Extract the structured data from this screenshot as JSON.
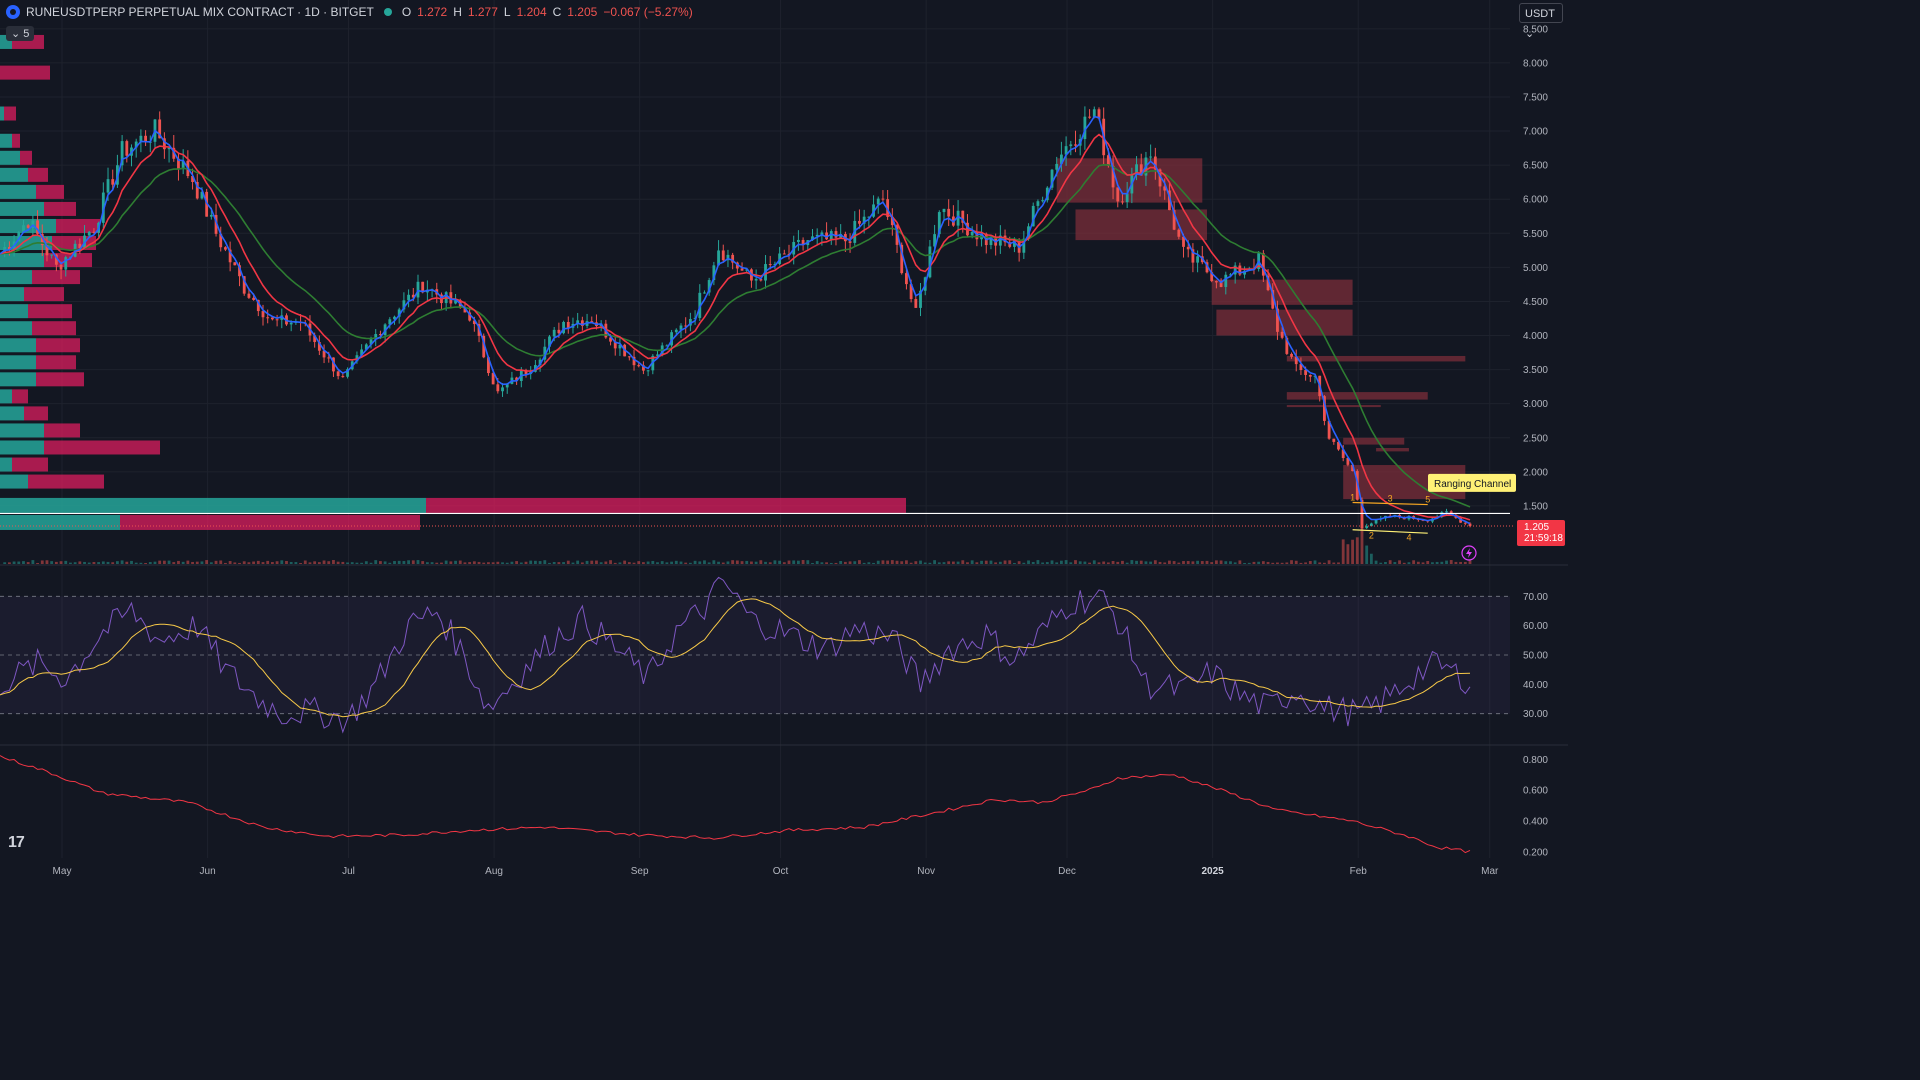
{
  "header": {
    "symbol": "RUNEUSDTPERP PERPETUAL MIX CONTRACT · 1D · BITGET",
    "open_label": "O",
    "open": "1.272",
    "high_label": "H",
    "high": "1.277",
    "low_label": "L",
    "low": "1.204",
    "close_label": "C",
    "close": "1.205",
    "change": "−0.067 (−5.27%)",
    "indicator_count": "5"
  },
  "currency": "USDT",
  "last_price_tag": {
    "price": "1.205",
    "countdown": "21:59:18"
  },
  "annotation": "Ranging Channel",
  "colors": {
    "background": "#131722",
    "up": "#26a69a",
    "down": "#ef5350",
    "ema_fast": "#2962ff",
    "ema_mid": "#f23645",
    "ema_slow": "#2e7d32",
    "rsi": "#7e57c2",
    "rsi_ma": "#f7c948",
    "bottom": "#f23645",
    "vp_up": "#26a69a",
    "vp_down": "#e91e63",
    "ob": "#7b2d3a"
  },
  "chart_data": [
    {
      "type": "candlestick",
      "price_axis_ticks": [
        "8.500",
        "8.000",
        "7.500",
        "7.000",
        "6.500",
        "6.000",
        "5.500",
        "5.000",
        "4.500",
        "4.000",
        "3.500",
        "3.000",
        "2.500",
        "2.000",
        "1.500"
      ],
      "ylim": [
        1.0,
        8.6
      ],
      "x_labels": [
        "May",
        "Jun",
        "Jul",
        "Aug",
        "Sep",
        "Oct",
        "Nov",
        "Dec",
        "2025",
        "Feb",
        "Mar"
      ],
      "x_label_days": [
        0,
        31,
        61,
        92,
        123,
        153,
        184,
        214,
        245,
        276,
        304
      ],
      "total_days": 313,
      "anchors": [
        [
          0,
          5.2
        ],
        [
          6,
          5.7
        ],
        [
          12,
          5.0
        ],
        [
          20,
          5.6
        ],
        [
          26,
          6.7
        ],
        [
          33,
          7.0
        ],
        [
          41,
          6.3
        ],
        [
          46,
          5.5
        ],
        [
          52,
          4.7
        ],
        [
          58,
          4.2
        ],
        [
          64,
          4.2
        ],
        [
          73,
          3.35
        ],
        [
          82,
          4.2
        ],
        [
          90,
          4.75
        ],
        [
          100,
          4.3
        ],
        [
          106,
          3.15
        ],
        [
          113,
          3.55
        ],
        [
          120,
          4.2
        ],
        [
          126,
          4.25
        ],
        [
          137,
          3.5
        ],
        [
          148,
          4.35
        ],
        [
          153,
          5.3
        ],
        [
          160,
          4.8
        ],
        [
          172,
          5.4
        ],
        [
          180,
          5.4
        ],
        [
          188,
          6.0
        ],
        [
          195,
          4.3
        ],
        [
          200,
          5.9
        ],
        [
          210,
          5.4
        ],
        [
          217,
          5.3
        ],
        [
          225,
          6.6
        ],
        [
          233,
          7.3
        ],
        [
          238,
          6.0
        ],
        [
          245,
          6.7
        ],
        [
          252,
          5.2
        ],
        [
          260,
          4.8
        ],
        [
          268,
          5.1
        ],
        [
          272,
          4.1
        ],
        [
          276,
          3.5
        ],
        [
          280,
          3.4
        ],
        [
          283,
          2.5
        ],
        [
          288,
          2.0
        ],
        [
          290,
          1.2
        ],
        [
          296,
          1.35
        ],
        [
          304,
          1.3
        ],
        [
          308,
          1.4
        ],
        [
          313,
          1.205
        ]
      ],
      "ema_fast_seed": 3,
      "ema_mid_seed": 9,
      "ema_slow_seed": 21,
      "order_blocks": [
        [
          225,
          256,
          6.6,
          5.95
        ],
        [
          229,
          257,
          5.85,
          5.4
        ],
        [
          258,
          288,
          4.82,
          4.45
        ],
        [
          259,
          288,
          4.38,
          4.0
        ],
        [
          274,
          312,
          3.7,
          3.62
        ],
        [
          274,
          304,
          3.17,
          3.06
        ],
        [
          274,
          294,
          2.98,
          2.95
        ],
        [
          286,
          299,
          2.5,
          2.4
        ],
        [
          293,
          300,
          2.35,
          2.3
        ],
        [
          286,
          312,
          2.1,
          1.6
        ]
      ],
      "volume_profile": [
        {
          "price": 8.3,
          "up": 6,
          "down": 16
        },
        {
          "price": 7.85,
          "up": 0,
          "down": 25
        },
        {
          "price": 7.25,
          "up": 2,
          "down": 6
        },
        {
          "price": 6.85,
          "up": 6,
          "down": 4
        },
        {
          "price": 6.6,
          "up": 10,
          "down": 6
        },
        {
          "price": 6.35,
          "up": 14,
          "down": 10
        },
        {
          "price": 6.1,
          "up": 18,
          "down": 14
        },
        {
          "price": 5.85,
          "up": 22,
          "down": 16
        },
        {
          "price": 5.6,
          "up": 28,
          "down": 22
        },
        {
          "price": 5.35,
          "up": 26,
          "down": 22
        },
        {
          "price": 5.1,
          "up": 22,
          "down": 24
        },
        {
          "price": 4.85,
          "up": 16,
          "down": 24
        },
        {
          "price": 4.6,
          "up": 12,
          "down": 20
        },
        {
          "price": 4.35,
          "up": 14,
          "down": 22
        },
        {
          "price": 4.1,
          "up": 16,
          "down": 22
        },
        {
          "price": 3.85,
          "up": 18,
          "down": 22
        },
        {
          "price": 3.6,
          "up": 18,
          "down": 20
        },
        {
          "price": 3.35,
          "up": 18,
          "down": 24
        },
        {
          "price": 3.1,
          "up": 6,
          "down": 8
        },
        {
          "price": 2.85,
          "up": 12,
          "down": 12
        },
        {
          "price": 2.6,
          "up": 22,
          "down": 18
        },
        {
          "price": 2.35,
          "up": 22,
          "down": 58
        },
        {
          "price": 2.1,
          "up": 6,
          "down": 18
        },
        {
          "price": 1.85,
          "up": 14,
          "down": 38
        },
        {
          "price": 1.5,
          "up": 213,
          "down": 240
        },
        {
          "price": 1.25,
          "up": 60,
          "down": 150
        }
      ],
      "poc_price": 1.39,
      "ranging_channel": {
        "x_start": 288,
        "x_end": 304,
        "top": [
          1.55,
          1.52
        ],
        "bottom": [
          1.15,
          1.1
        ],
        "labels": [
          "1",
          "2",
          "3",
          "4",
          "5"
        ]
      }
    },
    {
      "type": "line",
      "name": "RSI",
      "ylim": [
        20,
        80
      ],
      "ticks": [
        "70.00",
        "60.00",
        "50.00",
        "40.00",
        "30.00"
      ],
      "levels": [
        70,
        50,
        30
      ],
      "anchors": [
        [
          0,
          40
        ],
        [
          8,
          47
        ],
        [
          14,
          42
        ],
        [
          22,
          58
        ],
        [
          28,
          65
        ],
        [
          34,
          55
        ],
        [
          42,
          60
        ],
        [
          48,
          45
        ],
        [
          55,
          35
        ],
        [
          60,
          30
        ],
        [
          66,
          31
        ],
        [
          74,
          28
        ],
        [
          80,
          40
        ],
        [
          87,
          60
        ],
        [
          93,
          65
        ],
        [
          98,
          52
        ],
        [
          104,
          32
        ],
        [
          110,
          42
        ],
        [
          118,
          56
        ],
        [
          124,
          62
        ],
        [
          130,
          54
        ],
        [
          138,
          42
        ],
        [
          144,
          58
        ],
        [
          150,
          66
        ],
        [
          154,
          75
        ],
        [
          160,
          62
        ],
        [
          168,
          57
        ],
        [
          176,
          52
        ],
        [
          182,
          59
        ],
        [
          190,
          56
        ],
        [
          196,
          40
        ],
        [
          202,
          52
        ],
        [
          210,
          57
        ],
        [
          216,
          48
        ],
        [
          222,
          58
        ],
        [
          228,
          68
        ],
        [
          234,
          70
        ],
        [
          238,
          62
        ],
        [
          244,
          40
        ],
        [
          252,
          38
        ],
        [
          258,
          44
        ],
        [
          264,
          36
        ],
        [
          270,
          32
        ],
        [
          276,
          38
        ],
        [
          282,
          32
        ],
        [
          290,
          30
        ],
        [
          296,
          36
        ],
        [
          302,
          44
        ],
        [
          306,
          47
        ],
        [
          313,
          41
        ]
      ],
      "ma_length": 14
    },
    {
      "type": "line",
      "name": "bottom indicator",
      "ylim": [
        0.16,
        0.88
      ],
      "ticks": [
        "0.800",
        "0.600",
        "0.400",
        "0.200"
      ],
      "anchors": [
        [
          0,
          0.82
        ],
        [
          10,
          0.72
        ],
        [
          22,
          0.58
        ],
        [
          40,
          0.52
        ],
        [
          56,
          0.36
        ],
        [
          70,
          0.3
        ],
        [
          86,
          0.31
        ],
        [
          100,
          0.34
        ],
        [
          116,
          0.36
        ],
        [
          136,
          0.31
        ],
        [
          152,
          0.29
        ],
        [
          168,
          0.34
        ],
        [
          184,
          0.36
        ],
        [
          200,
          0.46
        ],
        [
          212,
          0.54
        ],
        [
          222,
          0.52
        ],
        [
          234,
          0.62
        ],
        [
          238,
          0.68
        ],
        [
          250,
          0.7
        ],
        [
          262,
          0.58
        ],
        [
          272,
          0.47
        ],
        [
          288,
          0.4
        ],
        [
          300,
          0.3
        ],
        [
          306,
          0.23
        ],
        [
          313,
          0.2
        ]
      ]
    }
  ]
}
